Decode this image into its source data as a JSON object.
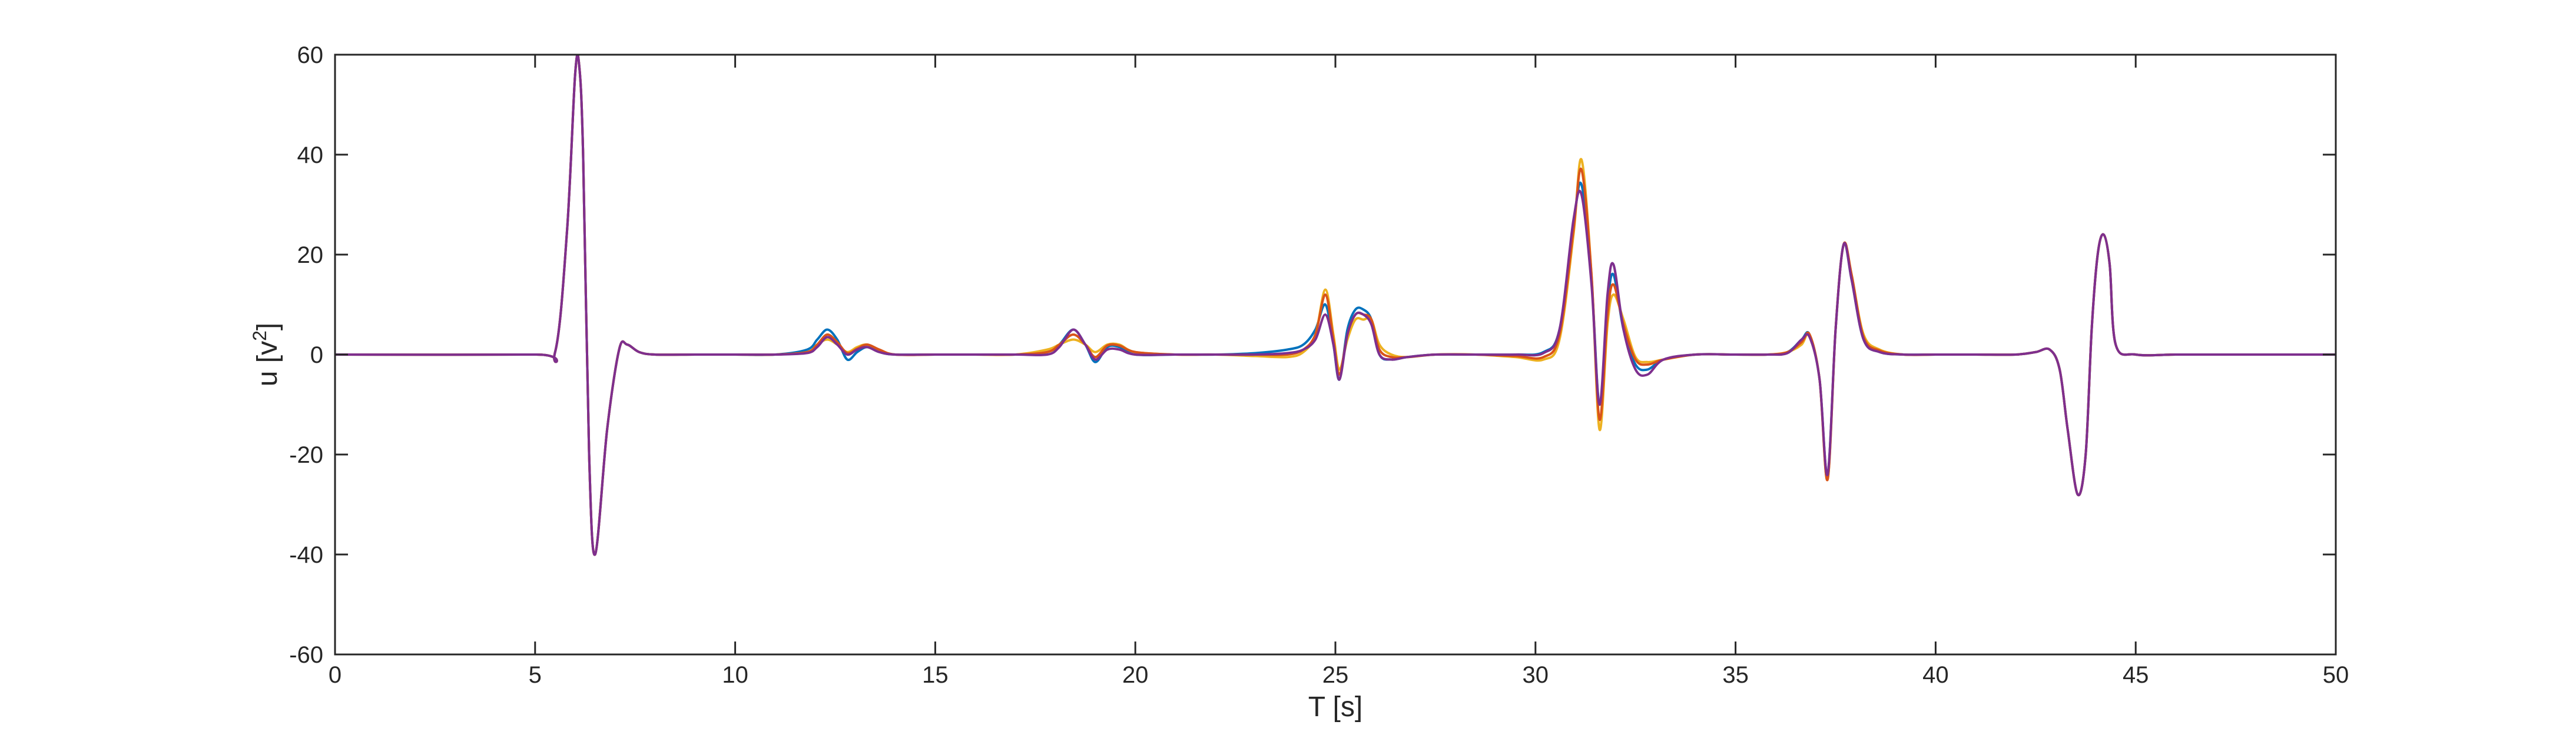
{
  "chart_data": {
    "type": "line",
    "title": "",
    "xlabel": "T [s]",
    "ylabel": {
      "base": "u [v",
      "sup": "2",
      "close": "]"
    },
    "xlim": [
      0,
      50
    ],
    "ylim": [
      -60,
      60
    ],
    "xticks": [
      0,
      5,
      10,
      15,
      20,
      25,
      30,
      35,
      40,
      45,
      50
    ],
    "yticks": [
      -60,
      -40,
      -20,
      0,
      20,
      40,
      60
    ],
    "grid": false,
    "legend": "none",
    "series": [
      {
        "color": "#0072BD",
        "x": [
          0,
          5,
          5.5,
          5.8,
          6.0,
          6.1,
          6.2,
          6.35,
          6.5,
          6.8,
          7.1,
          7.3,
          7.6,
          8.0,
          9,
          10,
          11,
          11.8,
          12.05,
          12.3,
          12.55,
          12.8,
          13.05,
          13.3,
          13.6,
          14,
          15,
          16,
          17,
          17.8,
          18.1,
          18.45,
          18.75,
          19.0,
          19.3,
          19.6,
          20,
          21,
          22,
          23,
          23.8,
          24.2,
          24.5,
          24.75,
          24.95,
          25.1,
          25.3,
          25.5,
          25.7,
          25.9,
          26.1,
          26.4,
          26.8,
          27.5,
          28.5,
          29.5,
          30.2,
          30.6,
          30.95,
          31.15,
          31.4,
          31.6,
          31.8,
          31.95,
          32.2,
          32.5,
          32.8,
          33.2,
          34,
          35,
          35.8,
          36.3,
          36.65,
          36.85,
          37.1,
          37.3,
          37.5,
          37.7,
          37.9,
          38.2,
          38.6,
          39.2,
          40,
          41,
          42,
          42.5,
          42.85,
          43.1,
          43.3,
          43.55,
          43.75,
          43.9,
          44.05,
          44.2,
          44.35,
          44.5,
          45,
          46,
          47,
          48,
          49,
          50
        ],
        "values": [
          0,
          0,
          0.5,
          25,
          56,
          58,
          40,
          -20,
          -40,
          -15,
          1,
          2,
          0.5,
          0,
          0,
          0,
          0,
          1,
          3,
          5,
          3,
          -1,
          0.5,
          1.5,
          0.5,
          0,
          0,
          0,
          0,
          0.5,
          2,
          5,
          2,
          -1.5,
          1.5,
          1.5,
          0,
          0,
          0,
          0.3,
          1,
          2,
          5,
          10,
          2,
          -5,
          5,
          9,
          9,
          7,
          0,
          -1,
          -0.5,
          0,
          0,
          0,
          0.5,
          5,
          26,
          34,
          15,
          -10,
          10,
          16,
          5,
          -2,
          -3,
          -1,
          0,
          0,
          0,
          0.5,
          3,
          4,
          -5,
          -24,
          5,
          22,
          15,
          3,
          0.5,
          0,
          0,
          0,
          0,
          0.5,
          1,
          -3,
          -15,
          -28,
          -20,
          5,
          20,
          24,
          18,
          2,
          0,
          0,
          0,
          0,
          0,
          0
        ]
      },
      {
        "color": "#EDB120",
        "x": [
          0,
          5,
          5.5,
          5.8,
          6.0,
          6.1,
          6.2,
          6.35,
          6.5,
          6.8,
          7.1,
          7.3,
          7.6,
          8.0,
          9,
          10,
          11,
          11.8,
          12.05,
          12.3,
          12.55,
          12.8,
          13.05,
          13.3,
          13.6,
          14,
          15,
          16,
          17,
          17.8,
          18.1,
          18.45,
          18.75,
          19.0,
          19.3,
          19.6,
          20,
          21,
          22,
          23,
          23.8,
          24.2,
          24.5,
          24.75,
          24.95,
          25.1,
          25.3,
          25.5,
          25.7,
          25.9,
          26.1,
          26.4,
          26.8,
          27.5,
          28.5,
          29.5,
          30.2,
          30.6,
          30.95,
          31.15,
          31.4,
          31.6,
          31.8,
          31.95,
          32.2,
          32.5,
          32.8,
          33.2,
          34,
          35,
          35.8,
          36.3,
          36.65,
          36.85,
          37.1,
          37.3,
          37.5,
          37.7,
          37.9,
          38.2,
          38.6,
          39.2,
          40,
          41,
          42,
          42.5,
          42.85,
          43.1,
          43.3,
          43.55,
          43.75,
          43.9,
          44.05,
          44.2,
          44.35,
          44.5,
          45,
          46,
          47,
          48,
          49,
          50
        ],
        "values": [
          0,
          0,
          0.5,
          25,
          56,
          58,
          40,
          -20,
          -40,
          -15,
          1,
          2,
          0.5,
          0,
          0,
          0,
          0,
          0.5,
          2,
          3,
          2,
          0.5,
          1.5,
          2,
          1,
          0,
          0,
          0,
          0,
          1,
          2,
          3,
          2,
          0.5,
          2,
          2,
          0.5,
          0,
          0,
          -0.3,
          -0.5,
          0.5,
          4,
          13,
          4,
          -3,
          3,
          7,
          7,
          7,
          2,
          0,
          -0.5,
          0,
          0,
          -0.5,
          -1,
          3,
          24,
          39,
          16,
          -15,
          6,
          12,
          7,
          -0.5,
          -1.5,
          -1,
          0,
          0,
          0,
          0.5,
          2,
          4,
          -5,
          -25,
          5,
          22,
          16,
          4,
          1,
          0,
          0,
          0,
          0,
          0.5,
          1,
          -3,
          -15,
          -28,
          -20,
          5,
          20,
          24,
          18,
          2,
          0,
          0,
          0,
          0,
          0,
          0
        ]
      },
      {
        "color": "#D95319",
        "x": [
          0,
          5,
          5.5,
          5.8,
          6.0,
          6.1,
          6.2,
          6.35,
          6.5,
          6.8,
          7.1,
          7.3,
          7.6,
          8.0,
          9,
          10,
          11,
          11.8,
          12.05,
          12.3,
          12.55,
          12.8,
          13.05,
          13.3,
          13.6,
          14,
          15,
          16,
          17,
          17.8,
          18.1,
          18.45,
          18.75,
          19.0,
          19.3,
          19.6,
          20,
          21,
          22,
          23,
          23.8,
          24.2,
          24.5,
          24.75,
          24.95,
          25.1,
          25.3,
          25.5,
          25.7,
          25.9,
          26.1,
          26.4,
          26.8,
          27.5,
          28.5,
          29.5,
          30.2,
          30.6,
          30.95,
          31.15,
          31.4,
          31.6,
          31.8,
          31.95,
          32.2,
          32.5,
          32.8,
          33.2,
          34,
          35,
          35.8,
          36.3,
          36.65,
          36.85,
          37.1,
          37.3,
          37.5,
          37.7,
          37.9,
          38.2,
          38.6,
          39.2,
          40,
          41,
          42,
          42.5,
          42.85,
          43.1,
          43.3,
          43.55,
          43.75,
          43.9,
          44.05,
          44.2,
          44.35,
          44.5,
          45,
          46,
          47,
          48,
          49,
          50
        ],
        "values": [
          0,
          0,
          0.5,
          25,
          56,
          58,
          40,
          -20,
          -40,
          -15,
          1,
          2,
          0.5,
          0,
          0,
          0,
          0,
          0.5,
          2,
          4,
          2.5,
          0.3,
          1.2,
          2,
          1,
          0,
          0,
          0,
          0,
          0.5,
          2,
          4,
          2,
          -0.5,
          1.8,
          1.8,
          0.5,
          0,
          0,
          0,
          0,
          1,
          4,
          12,
          3,
          -4,
          4,
          8,
          8,
          7,
          1,
          -0.5,
          -0.5,
          0,
          0,
          -0.3,
          -0.5,
          4,
          25,
          37,
          16,
          -13,
          8,
          14,
          6,
          -1,
          -2,
          -1,
          0,
          0,
          0,
          0.5,
          2.5,
          4,
          -5,
          -25,
          5,
          22,
          16,
          3.5,
          0.8,
          0,
          0,
          0,
          0,
          0.5,
          1,
          -3,
          -15,
          -28,
          -20,
          5,
          20,
          24,
          18,
          2,
          0,
          0,
          0,
          0,
          0,
          0
        ]
      },
      {
        "color": "#7E2F8E",
        "x": [
          0,
          5,
          5.5,
          5.8,
          6.0,
          6.1,
          6.2,
          6.35,
          6.5,
          6.8,
          7.1,
          7.3,
          7.6,
          8.0,
          9,
          10,
          11,
          11.8,
          12.05,
          12.3,
          12.55,
          12.8,
          13.05,
          13.3,
          13.6,
          14,
          15,
          16,
          17,
          17.8,
          18.1,
          18.45,
          18.75,
          19.0,
          19.3,
          19.6,
          20,
          21,
          22,
          23,
          23.8,
          24.2,
          24.5,
          24.75,
          24.95,
          25.1,
          25.3,
          25.5,
          25.7,
          25.9,
          26.1,
          26.4,
          26.8,
          27.5,
          28.5,
          29.5,
          30.2,
          30.6,
          30.95,
          31.15,
          31.4,
          31.6,
          31.8,
          31.95,
          32.2,
          32.5,
          32.8,
          33.2,
          34,
          35,
          35.8,
          36.3,
          36.65,
          36.85,
          37.1,
          37.3,
          37.5,
          37.7,
          37.9,
          38.2,
          38.6,
          39.2,
          40,
          41,
          42,
          42.5,
          42.85,
          43.1,
          43.3,
          43.55,
          43.75,
          43.9,
          44.05,
          44.2,
          44.35,
          44.5,
          45,
          46,
          47,
          48,
          49,
          50
        ],
        "values": [
          0,
          0,
          0.5,
          25,
          56,
          58,
          40,
          -20,
          -40,
          -15,
          1,
          2,
          0.5,
          0,
          0,
          0,
          0,
          0.3,
          1.5,
          3.5,
          2,
          0,
          1,
          1.5,
          0.5,
          0,
          0,
          0,
          0,
          0,
          1.5,
          5,
          2,
          -1,
          1,
          1,
          0,
          0,
          0,
          0,
          0.3,
          1,
          3,
          8,
          2,
          -5,
          4,
          8,
          8,
          6,
          0,
          -1,
          -0.5,
          0,
          0,
          0,
          0.3,
          5,
          27,
          32,
          14,
          -10,
          12,
          18,
          5,
          -3,
          -4,
          -1,
          0,
          0,
          0,
          0.3,
          3,
          3.5,
          -5,
          -24,
          5,
          22,
          15,
          3,
          0.5,
          0,
          0,
          0,
          0,
          0.5,
          1,
          -3,
          -15,
          -28,
          -20,
          5,
          20,
          24,
          18,
          2,
          0,
          0,
          0,
          0,
          0,
          0
        ]
      }
    ]
  }
}
